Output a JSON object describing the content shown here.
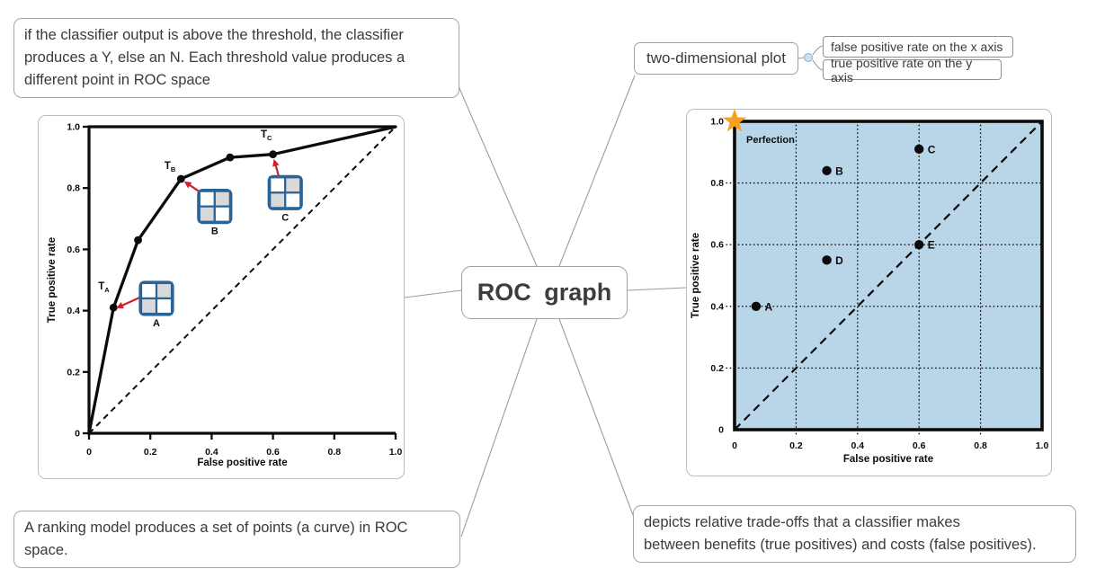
{
  "mindmap": {
    "center": {
      "label": "ROC graph"
    },
    "notes": {
      "top_left": "if the classifier output is above the threshold, the classifier\nproduces a Y, else an N. Each threshold value produces a\ndifferent point in ROC space",
      "bottom_left": "A ranking model produces a set of points (a curve) in ROC\nspace.",
      "bottom_right": "depicts relative trade-offs that a classifier makes\nbetween benefits (true positives) and costs (false positives)."
    },
    "branches": {
      "two_dimensional_plot": {
        "label": "two-dimensional plot",
        "children": [
          {
            "label": "false positive rate on the x axis"
          },
          {
            "label": "true positive rate on the y axis"
          }
        ]
      }
    }
  },
  "colors": {
    "node_border": "#a0a0a0",
    "node_text": "#3b3b3b",
    "connector": "#9b9b9b",
    "figure_frame": "#bdbdbd",
    "plot_background_blue": "#b9d6e9",
    "star_orange": "#f5a01e",
    "matrix_blue": "#2a6496",
    "matrix_shade_gray": "#d9d9d9",
    "arrow_red": "#cc2127",
    "ink": "#0b0b0b"
  },
  "chart_data": [
    {
      "id": "roc-curve-with-thresholds",
      "type": "line",
      "xlabel": "False positive rate",
      "ylabel": "True positive rate",
      "xlim": [
        0,
        1
      ],
      "ylim": [
        0,
        1
      ],
      "xticks": [
        0,
        0.2,
        0.4,
        0.6,
        0.8,
        1.0
      ],
      "yticks": [
        0,
        0.2,
        0.4,
        0.6,
        0.8,
        1.0
      ],
      "tick_labels": [
        "0",
        "0.2",
        "0.4",
        "0.6",
        "0.8",
        "1.0"
      ],
      "grid": false,
      "diagonal_reference_line": true,
      "series": [
        {
          "name": "ROC curve",
          "points": [
            [
              0,
              0
            ],
            [
              0.08,
              0.41
            ],
            [
              0.16,
              0.63
            ],
            [
              0.3,
              0.83
            ],
            [
              0.46,
              0.9
            ],
            [
              0.6,
              0.91
            ],
            [
              1.0,
              1.0
            ]
          ]
        }
      ],
      "marked_points": [
        [
          0.08,
          0.41
        ],
        [
          0.16,
          0.63
        ],
        [
          0.3,
          0.83
        ],
        [
          0.46,
          0.9
        ],
        [
          0.6,
          0.91
        ]
      ],
      "threshold_labels": [
        {
          "text": "T",
          "sub": "A",
          "x": 0.03,
          "y": 0.469
        },
        {
          "text": "T",
          "sub": "B",
          "x": 0.246,
          "y": 0.862
        },
        {
          "text": "T",
          "sub": "C",
          "x": 0.56,
          "y": 0.965
        }
      ],
      "confusion_matrices": [
        {
          "label": "A",
          "x": 0.22,
          "y": 0.44,
          "shaded_cells": [
            "top-right",
            "bottom-left"
          ],
          "arrow_from": [
            0.17,
            0.445
          ],
          "arrow_to": [
            0.088,
            0.408
          ]
        },
        {
          "label": "B",
          "x": 0.41,
          "y": 0.74,
          "shaded_cells": [
            "top-right",
            "bottom-left"
          ],
          "arrow_from": [
            0.365,
            0.785
          ],
          "arrow_to": [
            0.31,
            0.822
          ]
        },
        {
          "label": "C",
          "x": 0.64,
          "y": 0.785,
          "shaded_cells": [
            "top-right",
            "bottom-left"
          ],
          "arrow_from": [
            0.62,
            0.835
          ],
          "arrow_to": [
            0.603,
            0.895
          ]
        }
      ]
    },
    {
      "id": "roc-space-scatter",
      "type": "scatter",
      "xlabel": "False positive rate",
      "ylabel": "True positive rate",
      "xlim": [
        0,
        1
      ],
      "ylim": [
        0,
        1
      ],
      "xticks": [
        0,
        0.2,
        0.4,
        0.6,
        0.8,
        1.0
      ],
      "yticks": [
        0,
        0.2,
        0.4,
        0.6,
        0.8,
        1.0
      ],
      "tick_labels": [
        "0",
        "0.2",
        "0.4",
        "0.6",
        "0.8",
        "1.0"
      ],
      "grid": "dotted",
      "diagonal_reference_line": true,
      "plot_background": "#b9d6e9",
      "points": [
        {
          "label": "A",
          "x": 0.07,
          "y": 0.4
        },
        {
          "label": "B",
          "x": 0.3,
          "y": 0.84
        },
        {
          "label": "C",
          "x": 0.6,
          "y": 0.91
        },
        {
          "label": "D",
          "x": 0.3,
          "y": 0.55
        },
        {
          "label": "E",
          "x": 0.6,
          "y": 0.6
        }
      ],
      "annotations": [
        {
          "type": "star",
          "label": "Perfection",
          "x": 0.0,
          "y": 1.0,
          "color": "#f5a01e"
        }
      ]
    }
  ]
}
